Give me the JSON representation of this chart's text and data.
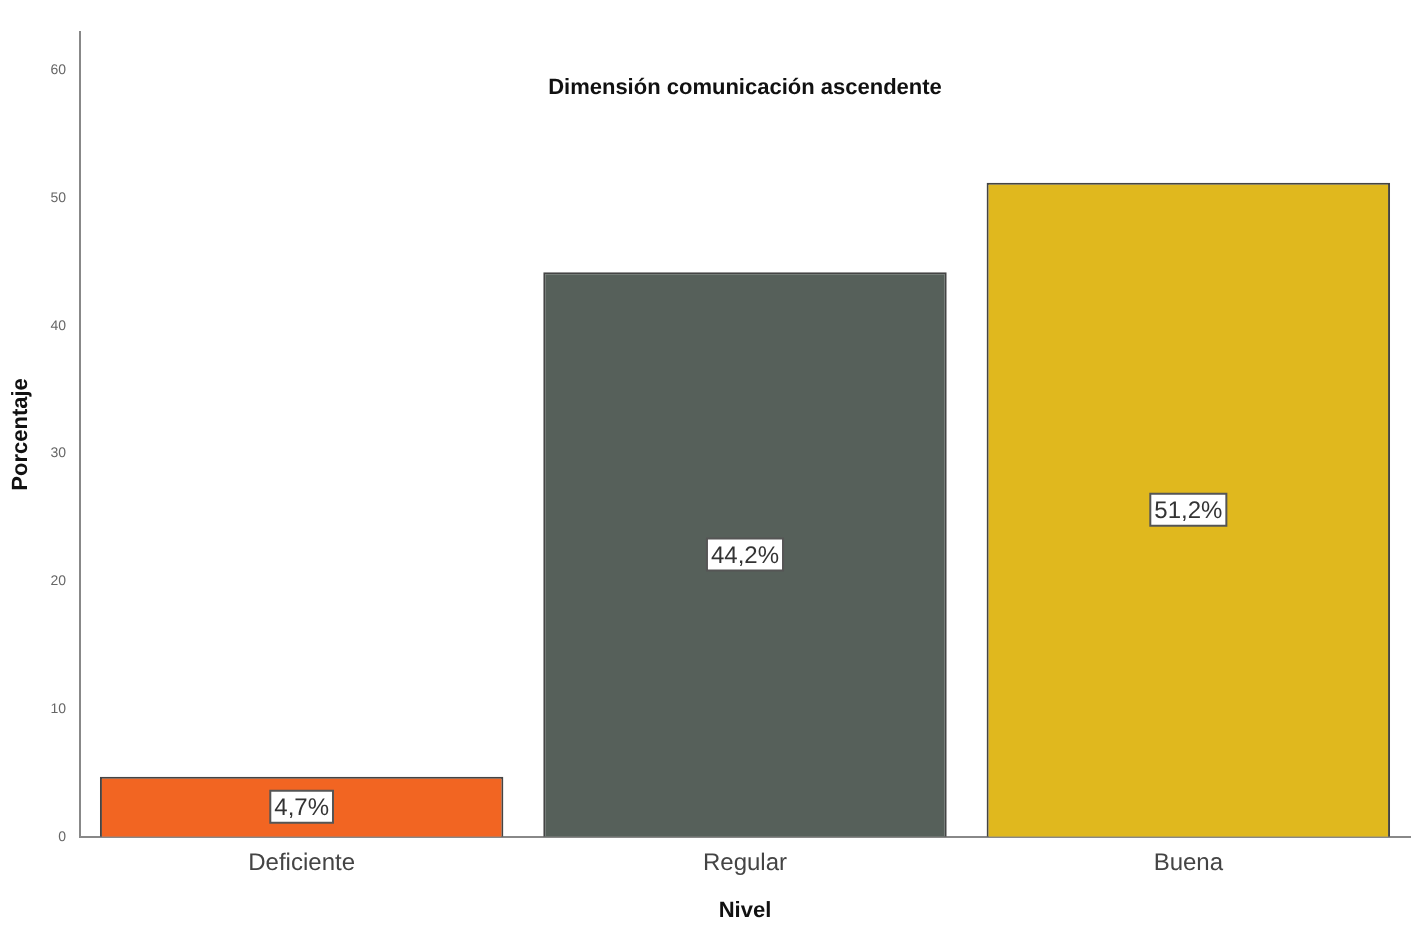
{
  "chart_data": {
    "type": "bar",
    "title": "Dimensión comunicación ascendente",
    "xlabel": "Nivel",
    "ylabel": "Porcentaje",
    "categories": [
      "Deficiente",
      "Regular",
      "Buena"
    ],
    "values": [
      4.7,
      44.2,
      51.2
    ],
    "colors": [
      "#f26522",
      "#56605a",
      "#e0b81e"
    ],
    "value_labels": [
      "4,7%",
      "44,2%",
      "51,2%"
    ],
    "ylim": [
      0,
      63
    ],
    "yticks": [
      0,
      10,
      20,
      30,
      40,
      50,
      60
    ],
    "grid": false,
    "legend": false
  }
}
